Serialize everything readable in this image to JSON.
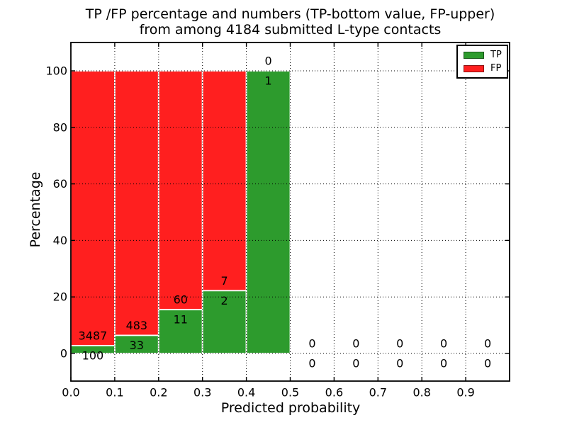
{
  "title": {
    "line1": "TP /FP percentage and numbers (TP-bottom value, FP-upper)",
    "line2": "from among 4184 submitted L-type contacts"
  },
  "axes": {
    "xlabel": "Predicted probability",
    "ylabel": "Percentage",
    "ytick_labels": [
      "0",
      "20",
      "40",
      "60",
      "80",
      "100"
    ],
    "xtick_labels": [
      "0.0",
      "0.1",
      "0.2",
      "0.3",
      "0.4",
      "0.5",
      "0.6",
      "0.7",
      "0.8",
      "0.9"
    ]
  },
  "legend": {
    "entries": [
      {
        "label": "TP",
        "color": "#2d9b2d"
      },
      {
        "label": "FP",
        "color": "#ff1f1f"
      }
    ]
  },
  "chart_data": {
    "type": "bar",
    "stacked": true,
    "normalized": "percent of bin total",
    "title": "TP /FP percentage and numbers (TP-bottom value, FP-upper) from among 4184 submitted L-type contacts",
    "xlabel": "Predicted probability",
    "ylabel": "Percentage",
    "total_submitted": 4184,
    "bin_edges": [
      0.0,
      0.1,
      0.2,
      0.3,
      0.4,
      0.5,
      0.6,
      0.7,
      0.8,
      0.9,
      1.0
    ],
    "series": [
      {
        "name": "TP",
        "position": "bottom",
        "color": "#2d9b2d",
        "counts": [
          100,
          33,
          11,
          2,
          1,
          0,
          0,
          0,
          0,
          0
        ]
      },
      {
        "name": "FP",
        "position": "top",
        "color": "#ff1f1f",
        "counts": [
          3487,
          483,
          60,
          7,
          0,
          0,
          0,
          0,
          0,
          0
        ]
      }
    ],
    "tp_percent": [
      2.8,
      6.4,
      15.5,
      22.2,
      100.0,
      0,
      0,
      0,
      0,
      0
    ],
    "yticks": [
      0,
      20,
      40,
      60,
      80,
      100
    ],
    "xticks": [
      0.0,
      0.1,
      0.2,
      0.3,
      0.4,
      0.5,
      0.6,
      0.7,
      0.8,
      0.9
    ],
    "ylim": [
      -9.9,
      110
    ],
    "xlim": [
      0.0,
      1.0
    ],
    "grid": true,
    "grid_style": "dotted",
    "bar_edge_color": "#ffffff",
    "annotation_rule": "FP count above TP/FP boundary, TP count below boundary",
    "legend_position": "upper right"
  }
}
